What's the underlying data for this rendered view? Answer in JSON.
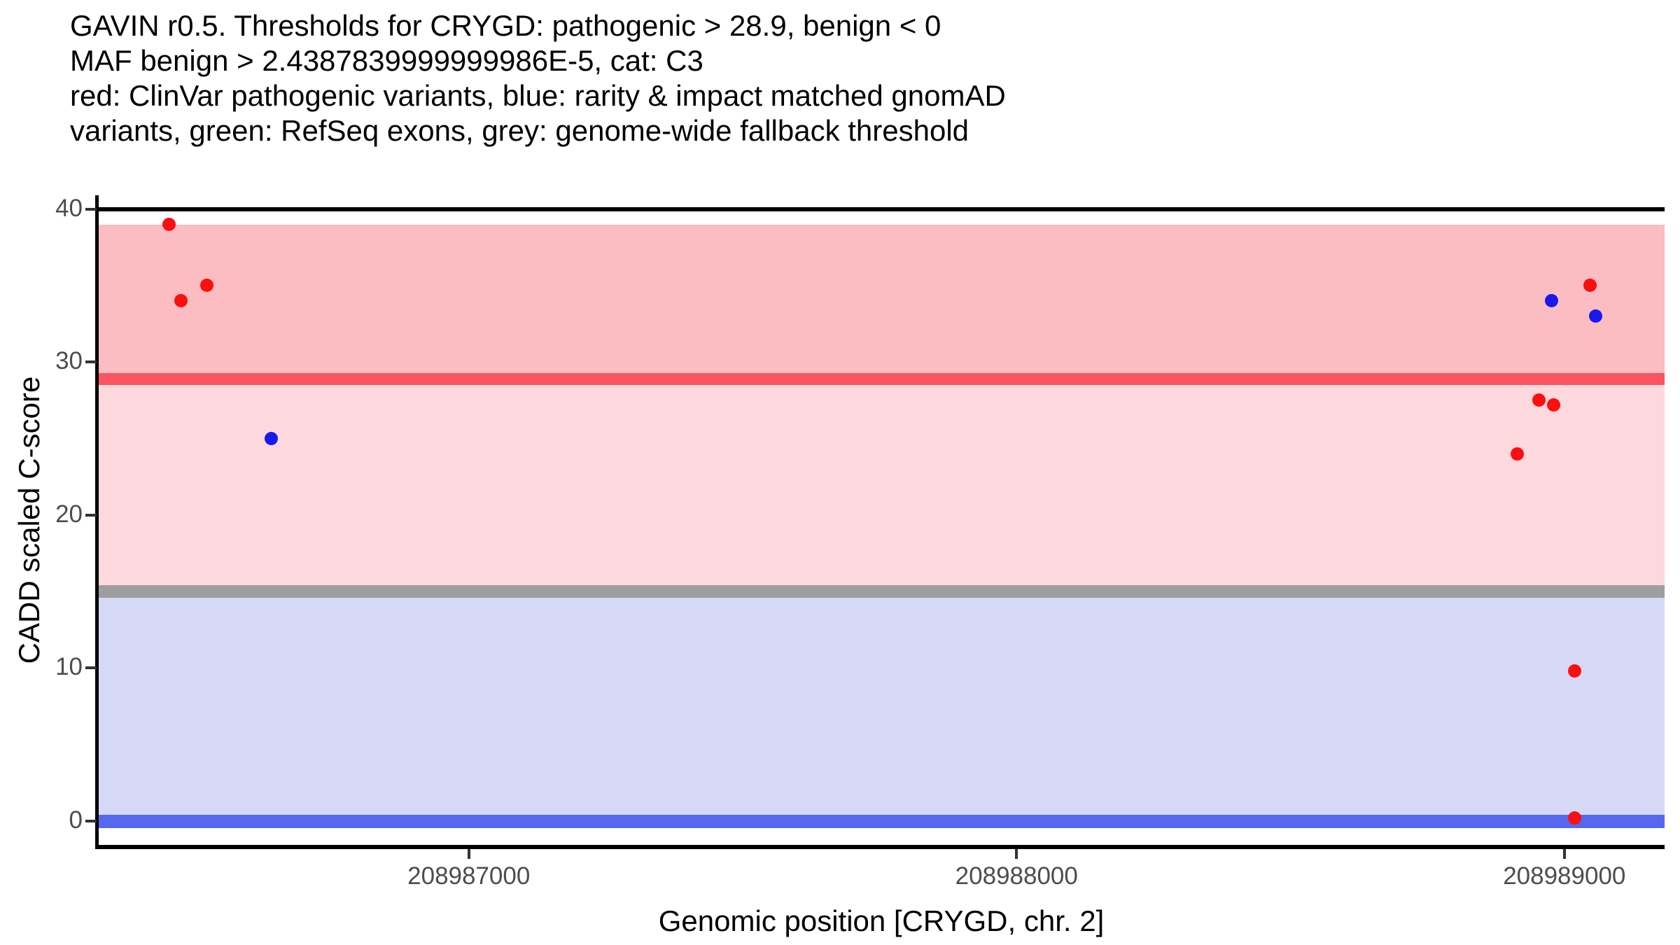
{
  "figure": {
    "background": "#FFFFFF",
    "title_lines": [
      "GAVIN r0.5. Thresholds for CRYGD: pathogenic > 28.9, benign < 0",
      "MAF benign > 2.4387839999999986E-5, cat: C3",
      "red: ClinVar pathogenic variants, blue: rarity & impact matched gnomAD",
      "variants, green: RefSeq exons, grey: genome-wide fallback threshold"
    ]
  },
  "chart_data": {
    "type": "scatter",
    "title": "GAVIN r0.5. Thresholds for CRYGD",
    "xlabel": "Genomic position [CRYGD, chr. 2]",
    "ylabel": "CADD scaled C-score",
    "xlim": [
      208986323,
      208989183
    ],
    "ylim": [
      -1.6,
      40.9
    ],
    "x_ticks": [
      208987000,
      208988000,
      208989000
    ],
    "y_ticks": [
      0,
      10,
      20,
      30,
      40
    ],
    "grid": false,
    "legend": "none",
    "thresholds": {
      "pathogenic_gt": 28.9,
      "benign_lt": 0,
      "maf_benign_gt": "2.4387839999999986E-5",
      "category": "C3",
      "genome_wide_fallback": 15
    },
    "bands": [
      {
        "name": "pathogenic-region",
        "from": 28.9,
        "to": 39,
        "color": "#FBBCC2"
      },
      {
        "name": "intermediate-region",
        "from": 15,
        "to": 28.9,
        "color": "#FDD8DD"
      },
      {
        "name": "benign-region",
        "from": 0,
        "to": 15,
        "color": "#D6D9F6"
      }
    ],
    "hlines": [
      {
        "name": "cadd-40-line",
        "y": 40,
        "color": "#000000",
        "thickness": 6
      },
      {
        "name": "pathogenic-threshold-line",
        "y": 28.9,
        "color": "#FA5461",
        "thickness": 17
      },
      {
        "name": "genome-wide-fallback-line",
        "y": 15,
        "color": "#9E9E9E",
        "thickness": 18
      },
      {
        "name": "benign-threshold-line",
        "y": 0,
        "color": "#5568EF",
        "thickness": 19
      }
    ],
    "series": [
      {
        "name": "ClinVar pathogenic variants",
        "color": "#FB0F0F",
        "points": [
          [
            208986453,
            39
          ],
          [
            208986475,
            34
          ],
          [
            208986522,
            35
          ],
          [
            208988914,
            24
          ],
          [
            208988954,
            27.5
          ],
          [
            208988980,
            27.2
          ],
          [
            208989019,
            9.8
          ],
          [
            208989019,
            0.2
          ],
          [
            208989047,
            35
          ]
        ]
      },
      {
        "name": "rarity & impact matched gnomAD variants",
        "color": "#1919EE",
        "points": [
          [
            208986639,
            25
          ],
          [
            208988977,
            34
          ],
          [
            208989057,
            33
          ]
        ]
      }
    ],
    "colors": {
      "axis_line": "#000000",
      "tick_label": "#4D4D4D",
      "title_text": "#000000"
    }
  }
}
